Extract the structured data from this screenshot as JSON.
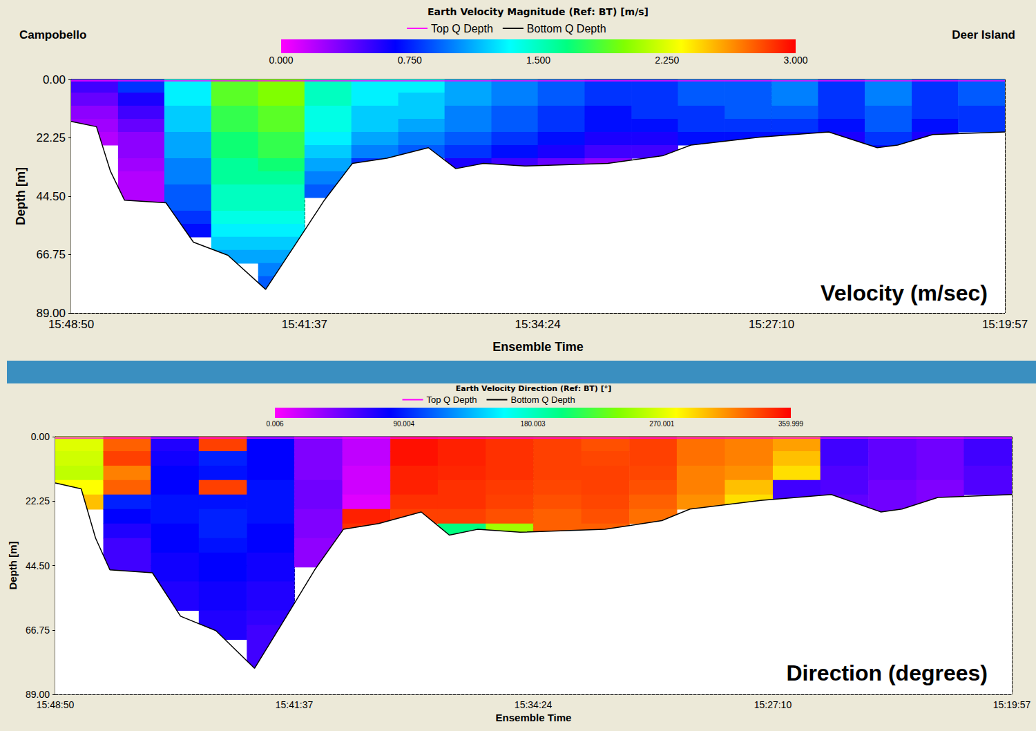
{
  "chart_data": [
    {
      "type": "heatmap",
      "title": "Earth Velocity Magnitude (Ref: BT) [m/s]",
      "annotations": [
        "Campobello",
        "Deer Island",
        "Velocity (m/sec)"
      ],
      "xlabel": "Ensemble Time",
      "ylabel": "Depth [m]",
      "xlim": [
        56930,
        55197
      ],
      "xticks": [
        {
          "value": 56930,
          "label": "15:48:50"
        },
        {
          "value": 56497,
          "label": "15:41:37"
        },
        {
          "value": 56064,
          "label": "15:34:24"
        },
        {
          "value": 55630,
          "label": "15:27:10"
        },
        {
          "value": 55197,
          "label": "15:19:57"
        }
      ],
      "ylim": [
        89,
        0
      ],
      "yticks": [
        {
          "value": 0,
          "label": "0.00"
        },
        {
          "value": 22.25,
          "label": "22.25"
        },
        {
          "value": 44.5,
          "label": "44.50"
        },
        {
          "value": 66.75,
          "label": "66.75"
        },
        {
          "value": 89,
          "label": "89.00"
        }
      ],
      "grid": true,
      "legend": "top",
      "colorbar": {
        "range": [
          0,
          3
        ],
        "ticks": [
          {
            "value": 0,
            "label": "0.000"
          },
          {
            "value": 0.75,
            "label": "0.750"
          },
          {
            "value": 1.5,
            "label": "1.500"
          },
          {
            "value": 2.25,
            "label": "2.250"
          },
          {
            "value": 3,
            "label": "3.000"
          }
        ]
      },
      "x_edges": [
        56930,
        56843,
        56757,
        56670,
        56583,
        56497,
        56410,
        56323,
        56237,
        56150,
        56064,
        55977,
        55890,
        55804,
        55717,
        55630,
        55544,
        55457,
        55370,
        55284,
        55197
      ],
      "depth_edges": [
        0,
        5,
        10,
        15,
        20,
        25,
        30,
        35,
        40,
        45,
        50,
        55,
        60,
        65,
        70,
        75,
        80
      ],
      "cells": [
        [
          0.5,
          0.4,
          0.3,
          0.25,
          0.2,
          null,
          null,
          null,
          null,
          null,
          null,
          null,
          null,
          null,
          null,
          null
        ],
        [
          0.8,
          0.6,
          0.5,
          0.4,
          0.3,
          0.3,
          0.25,
          0.2,
          0.2,
          0.2,
          null,
          null,
          null,
          null,
          null,
          null
        ],
        [
          1.3,
          1.3,
          1.2,
          1.2,
          1.1,
          1.1,
          1.0,
          1.0,
          0.9,
          0.9,
          0.8,
          0.7,
          null,
          null,
          null,
          null
        ],
        [
          1.9,
          1.9,
          1.8,
          1.8,
          1.7,
          1.7,
          1.6,
          1.6,
          1.5,
          1.5,
          1.4,
          1.3,
          1.2,
          1.1,
          null,
          null
        ],
        [
          2.0,
          2.0,
          1.9,
          1.9,
          1.8,
          1.8,
          1.7,
          1.6,
          1.5,
          1.5,
          1.4,
          1.3,
          1.2,
          1.1,
          1.0,
          0.9
        ],
        [
          1.5,
          1.5,
          1.4,
          1.4,
          1.3,
          1.2,
          1.1,
          1.0,
          0.9,
          null,
          null,
          null,
          null,
          null,
          null,
          null
        ],
        [
          1.3,
          1.3,
          1.2,
          1.2,
          1.1,
          1.0,
          0.8,
          null,
          null,
          null,
          null,
          null,
          null,
          null,
          null,
          null
        ],
        [
          1.3,
          1.2,
          1.2,
          1.1,
          1.0,
          0.9,
          null,
          null,
          null,
          null,
          null,
          null,
          null,
          null,
          null,
          null
        ],
        [
          1.1,
          1.1,
          1.0,
          1.0,
          0.9,
          0.8,
          0.6,
          null,
          null,
          null,
          null,
          null,
          null,
          null,
          null,
          null
        ],
        [
          1.0,
          1.0,
          0.9,
          0.9,
          0.8,
          0.7,
          0.5,
          null,
          null,
          null,
          null,
          null,
          null,
          null,
          null,
          null
        ],
        [
          0.9,
          0.9,
          0.8,
          0.8,
          0.7,
          0.6,
          0.4,
          null,
          null,
          null,
          null,
          null,
          null,
          null,
          null,
          null
        ],
        [
          0.8,
          0.8,
          0.7,
          0.7,
          0.6,
          0.5,
          0.3,
          null,
          null,
          null,
          null,
          null,
          null,
          null,
          null,
          null
        ],
        [
          0.8,
          0.8,
          0.8,
          0.7,
          0.6,
          0.5,
          null,
          null,
          null,
          null,
          null,
          null,
          null,
          null,
          null,
          null
        ],
        [
          0.9,
          0.9,
          0.8,
          0.8,
          0.7,
          null,
          null,
          null,
          null,
          null,
          null,
          null,
          null,
          null,
          null,
          null
        ],
        [
          0.9,
          0.9,
          0.9,
          0.8,
          0.7,
          null,
          null,
          null,
          null,
          null,
          null,
          null,
          null,
          null,
          null,
          null
        ],
        [
          1.0,
          1.0,
          0.9,
          0.8,
          0.7,
          null,
          null,
          null,
          null,
          null,
          null,
          null,
          null,
          null,
          null,
          null
        ],
        [
          0.8,
          0.8,
          0.8,
          0.7,
          0.6,
          null,
          null,
          null,
          null,
          null,
          null,
          null,
          null,
          null,
          null,
          null
        ],
        [
          1.0,
          1.0,
          0.9,
          0.9,
          0.8,
          0.7,
          null,
          null,
          null,
          null,
          null,
          null,
          null,
          null,
          null,
          null
        ],
        [
          0.8,
          0.8,
          0.8,
          0.7,
          0.6,
          null,
          null,
          null,
          null,
          null,
          null,
          null,
          null,
          null,
          null,
          null
        ],
        [
          0.9,
          0.9,
          0.8,
          0.8,
          null,
          null,
          null,
          null,
          null,
          null,
          null,
          null,
          null,
          null,
          null,
          null
        ]
      ],
      "series": [
        {
          "name": "Top Q Depth",
          "color": "#ff00ff",
          "type": "line",
          "x": [
            56930,
            55197
          ],
          "values": [
            0.5,
            0.5
          ]
        },
        {
          "name": "Bottom Q Depth",
          "color": "#000000",
          "type": "line",
          "x": [
            56930,
            56883,
            56857,
            56831,
            56754,
            56703,
            56639,
            56569,
            56511,
            56460,
            56408,
            56344,
            56267,
            56216,
            56165,
            56088,
            55934,
            55831,
            55780,
            55652,
            55524,
            55434,
            55396,
            55331,
            55197
          ],
          "values": [
            16,
            18,
            35,
            46,
            47,
            62,
            67,
            80,
            62,
            46,
            32,
            30,
            26,
            34,
            32,
            33,
            32,
            29,
            25,
            22,
            20,
            26,
            25,
            21,
            20
          ]
        }
      ]
    },
    {
      "type": "heatmap",
      "title": "Earth Velocity Direction (Ref: BT) [°]",
      "annotations": [
        "Direction (degrees)"
      ],
      "xlabel": "Ensemble Time",
      "ylabel": "Depth [m]",
      "xlim": [
        56930,
        55197
      ],
      "xticks": [
        {
          "value": 56930,
          "label": "15:48:50"
        },
        {
          "value": 56497,
          "label": "15:41:37"
        },
        {
          "value": 56064,
          "label": "15:34:24"
        },
        {
          "value": 55630,
          "label": "15:27:10"
        },
        {
          "value": 55197,
          "label": "15:19:57"
        }
      ],
      "ylim": [
        89,
        0
      ],
      "yticks": [
        {
          "value": 0,
          "label": "0.00"
        },
        {
          "value": 22.25,
          "label": "22.25"
        },
        {
          "value": 44.5,
          "label": "44.50"
        },
        {
          "value": 66.75,
          "label": "66.75"
        },
        {
          "value": 89,
          "label": "89.00"
        }
      ],
      "grid": true,
      "legend": "top",
      "colorbar": {
        "range": [
          0.006,
          359.999
        ],
        "ticks": [
          0.006,
          90.004,
          180.003,
          270.001,
          359.999
        ]
      },
      "x_edges": [
        56930,
        56843,
        56757,
        56670,
        56583,
        56497,
        56410,
        56323,
        56237,
        56150,
        56064,
        55977,
        55890,
        55804,
        55717,
        55630,
        55544,
        55457,
        55370,
        55284,
        55197
      ],
      "depth_edges": [
        0,
        5,
        10,
        15,
        20,
        25,
        30,
        35,
        40,
        45,
        50,
        55,
        60,
        65,
        70,
        75,
        80
      ],
      "cells": [
        [
          270,
          265,
          260,
          280,
          300,
          null,
          null,
          null,
          null,
          null,
          null,
          null,
          null,
          null,
          null,
          null
        ],
        [
          330,
          340,
          320,
          330,
          90,
          80,
          70,
          60,
          60,
          60,
          null,
          null,
          null,
          null,
          null,
          null
        ],
        [
          70,
          75,
          80,
          80,
          85,
          85,
          80,
          80,
          75,
          75,
          70,
          70,
          null,
          null,
          null,
          null
        ],
        [
          340,
          90,
          85,
          340,
          85,
          90,
          90,
          85,
          80,
          80,
          75,
          75,
          70,
          70,
          null,
          null
        ],
        [
          80,
          80,
          80,
          85,
          85,
          85,
          80,
          80,
          75,
          75,
          70,
          70,
          65,
          60,
          60,
          60
        ],
        [
          40,
          40,
          40,
          45,
          45,
          40,
          40,
          35,
          35,
          null,
          null,
          null,
          null,
          null,
          null,
          null
        ],
        [
          20,
          20,
          15,
          15,
          10,
          350,
          345,
          null,
          null,
          null,
          null,
          null,
          null,
          null,
          null,
          null
        ],
        [
          355,
          355,
          350,
          350,
          345,
          340,
          null,
          null,
          null,
          null,
          null,
          null,
          null,
          null,
          null,
          null
        ],
        [
          350,
          350,
          348,
          345,
          345,
          340,
          200,
          null,
          null,
          null,
          null,
          null,
          null,
          null,
          null,
          null
        ],
        [
          345,
          345,
          345,
          342,
          340,
          335,
          250,
          null,
          null,
          null,
          null,
          null,
          null,
          null,
          null,
          null
        ],
        [
          340,
          340,
          340,
          338,
          335,
          330,
          330,
          null,
          null,
          null,
          null,
          null,
          null,
          null,
          null,
          null
        ],
        [
          335,
          338,
          340,
          340,
          338,
          335,
          330,
          null,
          null,
          null,
          null,
          null,
          null,
          null,
          null,
          null
        ],
        [
          340,
          340,
          338,
          335,
          330,
          325,
          null,
          null,
          null,
          null,
          null,
          null,
          null,
          null,
          null,
          null
        ],
        [
          325,
          325,
          320,
          320,
          315,
          null,
          null,
          null,
          null,
          null,
          null,
          null,
          null,
          null,
          null,
          null
        ],
        [
          320,
          320,
          315,
          300,
          290,
          null,
          null,
          null,
          null,
          null,
          null,
          null,
          null,
          null,
          null,
          null
        ],
        [
          310,
          300,
          290,
          60,
          60,
          null,
          null,
          null,
          null,
          null,
          null,
          null,
          null,
          null,
          null,
          null
        ],
        [
          60,
          60,
          55,
          55,
          50,
          null,
          null,
          null,
          null,
          null,
          null,
          null,
          null,
          null,
          null,
          null
        ],
        [
          50,
          50,
          50,
          45,
          45,
          45,
          null,
          null,
          null,
          null,
          null,
          null,
          null,
          null,
          null,
          null
        ],
        [
          45,
          45,
          45,
          40,
          40,
          null,
          null,
          null,
          null,
          null,
          null,
          null,
          null,
          null,
          null,
          null
        ],
        [
          60,
          60,
          55,
          55,
          null,
          null,
          null,
          null,
          null,
          null,
          null,
          null,
          null,
          null,
          null,
          null
        ]
      ],
      "series": [
        {
          "name": "Top Q Depth",
          "color": "#ff00ff",
          "type": "line",
          "x": [
            56930,
            55197
          ],
          "values": [
            0.5,
            0.5
          ]
        },
        {
          "name": "Bottom Q Depth",
          "color": "#000000",
          "type": "line",
          "x": [
            56930,
            56883,
            56857,
            56831,
            56754,
            56703,
            56639,
            56569,
            56511,
            56460,
            56408,
            56344,
            56267,
            56216,
            56165,
            56088,
            55934,
            55831,
            55780,
            55652,
            55524,
            55434,
            55396,
            55331,
            55197
          ],
          "values": [
            16,
            18,
            35,
            46,
            47,
            62,
            67,
            80,
            62,
            46,
            32,
            30,
            26,
            34,
            32,
            33,
            32,
            29,
            25,
            22,
            20,
            26,
            25,
            21,
            20
          ]
        }
      ]
    }
  ]
}
